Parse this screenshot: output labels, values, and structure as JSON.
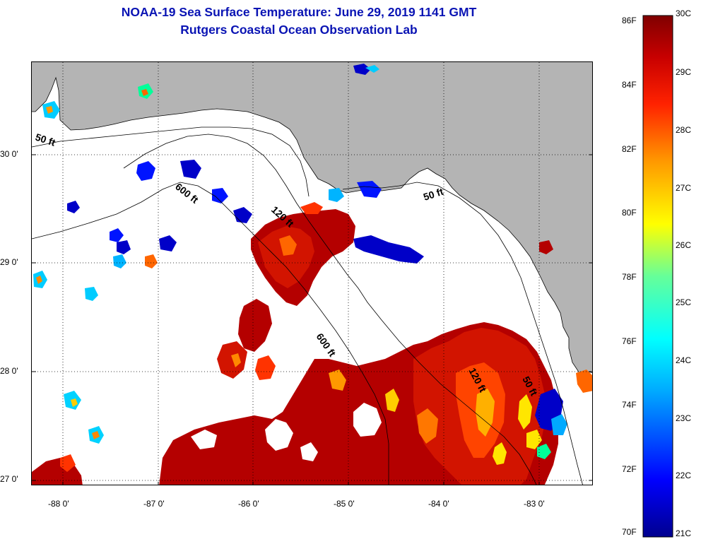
{
  "header": {
    "title": "NOAA-19 Sea Surface Temperature:  June 29, 2019 1141 GMT",
    "subtitle": "Rutgers Coastal Ocean Observation Lab"
  },
  "map": {
    "lat_range": [
      26.95,
      30.85
    ],
    "lon_range": [
      -88.3,
      -82.4
    ],
    "lat_ticks": [
      {
        "label": "30 0'"
      },
      {
        "label": "29 0'"
      },
      {
        "label": "28 0'"
      },
      {
        "label": "27 0'"
      }
    ],
    "lon_ticks": [
      {
        "label": "-88 0'"
      },
      {
        "label": "-87 0'"
      },
      {
        "label": "-86 0'"
      },
      {
        "label": "-85 0'"
      },
      {
        "label": "-84 0'"
      },
      {
        "label": "-83 0'"
      }
    ],
    "contour_labels": [
      {
        "text": "50 ft"
      },
      {
        "text": "600 ft"
      },
      {
        "text": "120 ft"
      },
      {
        "text": "50 ft"
      },
      {
        "text": "600 ft"
      },
      {
        "text": "120 ft"
      },
      {
        "text": "50 ft"
      }
    ],
    "colors": {
      "land": "#b4b4b4",
      "no_data": "#ffffff",
      "gridline": "#000000"
    }
  },
  "colorbar": {
    "fahrenheit_labels": [
      "86F",
      "84F",
      "82F",
      "80F",
      "78F",
      "76F",
      "74F",
      "72F",
      "70F"
    ],
    "celsius_labels": [
      "30C",
      "29C",
      "28C",
      "27C",
      "26C",
      "25C",
      "24C",
      "23C",
      "22C",
      "21C"
    ],
    "celsius_range": [
      21,
      30
    ],
    "colormap": [
      "#00008f",
      "#0000ff",
      "#00aaff",
      "#00ffff",
      "#66ff99",
      "#ffff00",
      "#ff9900",
      "#ff2200",
      "#c80000",
      "#800000"
    ]
  }
}
